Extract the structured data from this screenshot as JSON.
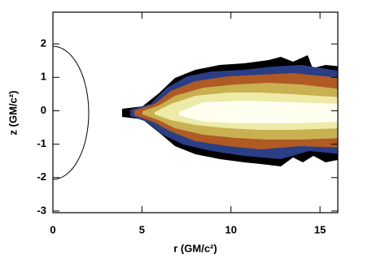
{
  "chart_data": {
    "type": "image",
    "x_label": "r (GM/c²)",
    "y_label": "z (GM/c²)",
    "xlim": [
      0,
      16
    ],
    "xticks": [
      0,
      5,
      10,
      15
    ],
    "ylim": [
      -3.05,
      2.95
    ],
    "yticks": [
      -3,
      -2,
      -1,
      0,
      1,
      2
    ]
  }
}
